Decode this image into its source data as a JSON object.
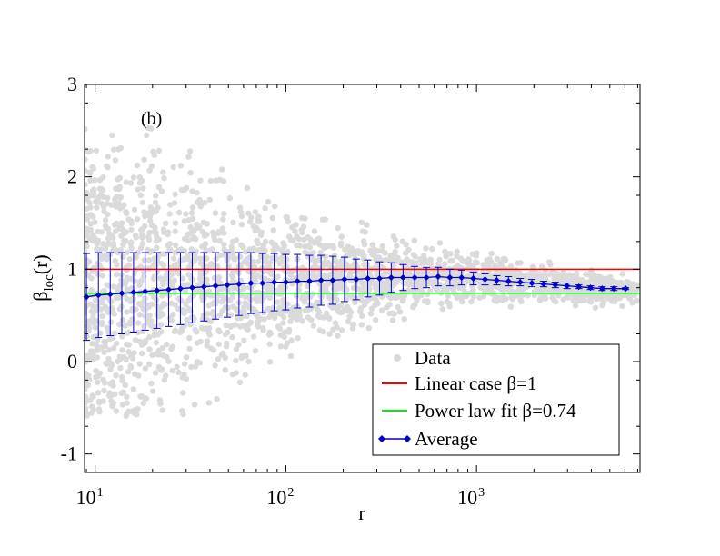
{
  "chart_data": {
    "type": "scatter",
    "panel_label": "(b)",
    "xlabel": "r",
    "ylabel_main": "β",
    "ylabel_sub": "loc",
    "ylabel_tail": "(r)",
    "xscale": "log",
    "xlim": [
      8.8,
      7200
    ],
    "ylim": [
      -1.2,
      3
    ],
    "x_ticks": [
      {
        "value": 10,
        "base": "10",
        "exp": "1"
      },
      {
        "value": 100,
        "base": "10",
        "exp": "2"
      },
      {
        "value": 1000,
        "base": "10",
        "exp": "3"
      }
    ],
    "y_ticks": [
      {
        "value": -1,
        "label": "-1"
      },
      {
        "value": 0,
        "label": "0"
      },
      {
        "value": 1,
        "label": "1"
      },
      {
        "value": 2,
        "label": "2"
      },
      {
        "value": 3,
        "label": "3"
      }
    ],
    "legend": {
      "position": "bottom-right",
      "entries": [
        {
          "label": "Data",
          "marker": "circle",
          "color": "#d9d9d9"
        },
        {
          "label": "Linear case β=1",
          "marker": "line",
          "color": "#ff0000"
        },
        {
          "label": "Power law fit β=0.74",
          "marker": "line",
          "color": "#00ee00"
        },
        {
          "label": "Average",
          "marker": "diamond-line",
          "color": "#0000cc"
        }
      ]
    },
    "series": [
      {
        "name": "Linear case β=1",
        "kind": "hline",
        "y": 1.0,
        "color": "#ff0000"
      },
      {
        "name": "Power law fit β=0.74",
        "kind": "hline",
        "y": 0.74,
        "color": "#00ee00"
      },
      {
        "name": "Average",
        "kind": "line-errorbar",
        "color": "#0000cc",
        "x": [
          9,
          10.4,
          12,
          13.8,
          15.9,
          18.3,
          21.1,
          24.3,
          28,
          32.3,
          37.2,
          42.8,
          49.3,
          56.8,
          65.5,
          75.4,
          86.9,
          100,
          115,
          133,
          153,
          176,
          203,
          234,
          269,
          310,
          357,
          412,
          474,
          546,
          629,
          725,
          835,
          962,
          1108,
          1276,
          1470,
          1694,
          1951,
          2248,
          2589,
          2983,
          3436,
          3958,
          4559,
          5252,
          6050
        ],
        "y": [
          0.7,
          0.72,
          0.73,
          0.74,
          0.75,
          0.76,
          0.77,
          0.78,
          0.79,
          0.8,
          0.81,
          0.82,
          0.83,
          0.84,
          0.85,
          0.85,
          0.86,
          0.86,
          0.87,
          0.87,
          0.88,
          0.88,
          0.89,
          0.89,
          0.9,
          0.9,
          0.91,
          0.91,
          0.91,
          0.91,
          0.92,
          0.91,
          0.91,
          0.9,
          0.89,
          0.88,
          0.87,
          0.86,
          0.85,
          0.84,
          0.83,
          0.82,
          0.81,
          0.8,
          0.79,
          0.79,
          0.79
        ],
        "err": [
          0.47,
          0.46,
          0.45,
          0.44,
          0.43,
          0.42,
          0.41,
          0.4,
          0.39,
          0.38,
          0.37,
          0.36,
          0.35,
          0.34,
          0.33,
          0.32,
          0.31,
          0.3,
          0.29,
          0.28,
          0.27,
          0.26,
          0.24,
          0.22,
          0.2,
          0.18,
          0.16,
          0.14,
          0.12,
          0.11,
          0.1,
          0.09,
          0.08,
          0.07,
          0.06,
          0.05,
          0.05,
          0.04,
          0.04,
          0.03,
          0.03,
          0.03,
          0.02,
          0.02,
          0.02,
          0.02,
          0.01
        ]
      }
    ]
  }
}
